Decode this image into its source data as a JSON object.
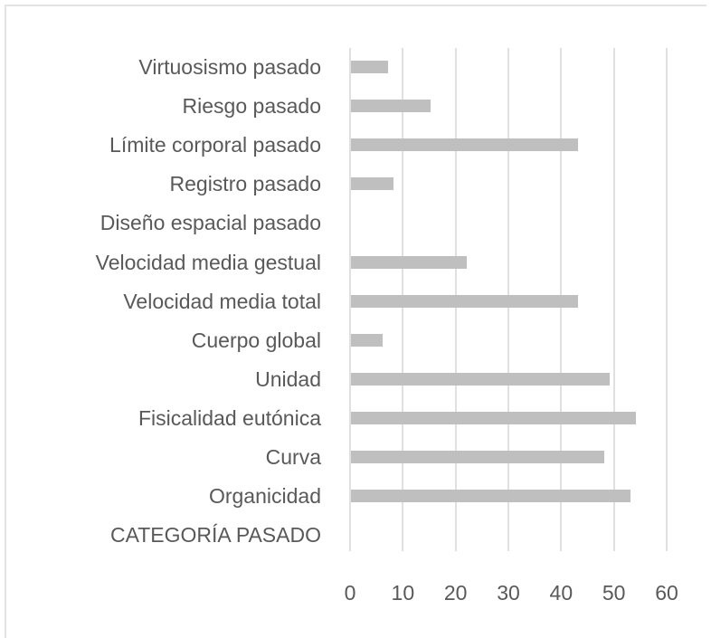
{
  "chart_data": {
    "type": "bar",
    "orientation": "horizontal",
    "title": "",
    "xlabel": "",
    "ylabel": "",
    "xlim": [
      0,
      60
    ],
    "x_ticks": [
      "0",
      "10",
      "20",
      "30",
      "40",
      "50",
      "60"
    ],
    "grid": true,
    "legend": null,
    "bar_color": "#bfbfbf",
    "categories": [
      "Virtuosismo pasado",
      "Riesgo pasado",
      "Límite corporal pasado",
      "Registro pasado",
      "Diseño espacial pasado",
      "Velocidad media gestual",
      "Velocidad media total",
      "Cuerpo global",
      "Unidad",
      "Fisicalidad eutónica",
      "Curva",
      "Organicidad",
      "CATEGORÍA PASADO"
    ],
    "values": [
      7,
      15,
      43,
      8,
      0,
      22,
      43,
      6,
      49,
      54,
      48,
      53,
      0
    ]
  }
}
